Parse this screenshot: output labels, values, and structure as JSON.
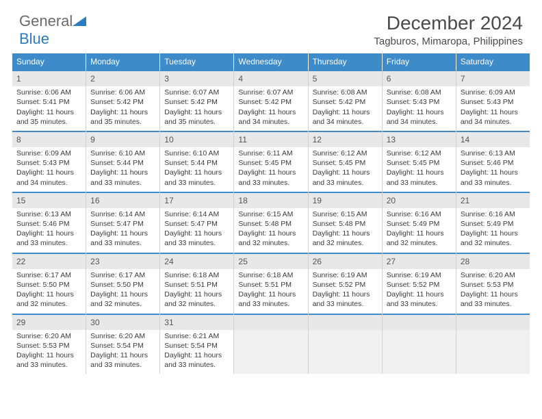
{
  "brand": {
    "word1": "General",
    "word2": "Blue"
  },
  "title": "December 2024",
  "subtitle": "Tagburos, Mimaropa, Philippines",
  "day_headers": [
    "Sunday",
    "Monday",
    "Tuesday",
    "Wednesday",
    "Thursday",
    "Friday",
    "Saturday"
  ],
  "colors": {
    "header_bg": "#3d8bc9",
    "header_text": "#ffffff",
    "daynum_bg": "#e8e8e8",
    "daynum_border": "#3d8bc9",
    "empty_bg": "#f0f0f0",
    "title_color": "#4a4a4a",
    "logo_gray": "#6a6a6a",
    "logo_blue": "#2d7bc0"
  },
  "weeks": [
    [
      {
        "n": "1",
        "sr": "Sunrise: 6:06 AM",
        "ss": "Sunset: 5:41 PM",
        "dl": "Daylight: 11 hours and 35 minutes."
      },
      {
        "n": "2",
        "sr": "Sunrise: 6:06 AM",
        "ss": "Sunset: 5:42 PM",
        "dl": "Daylight: 11 hours and 35 minutes."
      },
      {
        "n": "3",
        "sr": "Sunrise: 6:07 AM",
        "ss": "Sunset: 5:42 PM",
        "dl": "Daylight: 11 hours and 35 minutes."
      },
      {
        "n": "4",
        "sr": "Sunrise: 6:07 AM",
        "ss": "Sunset: 5:42 PM",
        "dl": "Daylight: 11 hours and 34 minutes."
      },
      {
        "n": "5",
        "sr": "Sunrise: 6:08 AM",
        "ss": "Sunset: 5:42 PM",
        "dl": "Daylight: 11 hours and 34 minutes."
      },
      {
        "n": "6",
        "sr": "Sunrise: 6:08 AM",
        "ss": "Sunset: 5:43 PM",
        "dl": "Daylight: 11 hours and 34 minutes."
      },
      {
        "n": "7",
        "sr": "Sunrise: 6:09 AM",
        "ss": "Sunset: 5:43 PM",
        "dl": "Daylight: 11 hours and 34 minutes."
      }
    ],
    [
      {
        "n": "8",
        "sr": "Sunrise: 6:09 AM",
        "ss": "Sunset: 5:43 PM",
        "dl": "Daylight: 11 hours and 34 minutes."
      },
      {
        "n": "9",
        "sr": "Sunrise: 6:10 AM",
        "ss": "Sunset: 5:44 PM",
        "dl": "Daylight: 11 hours and 33 minutes."
      },
      {
        "n": "10",
        "sr": "Sunrise: 6:10 AM",
        "ss": "Sunset: 5:44 PM",
        "dl": "Daylight: 11 hours and 33 minutes."
      },
      {
        "n": "11",
        "sr": "Sunrise: 6:11 AM",
        "ss": "Sunset: 5:45 PM",
        "dl": "Daylight: 11 hours and 33 minutes."
      },
      {
        "n": "12",
        "sr": "Sunrise: 6:12 AM",
        "ss": "Sunset: 5:45 PM",
        "dl": "Daylight: 11 hours and 33 minutes."
      },
      {
        "n": "13",
        "sr": "Sunrise: 6:12 AM",
        "ss": "Sunset: 5:45 PM",
        "dl": "Daylight: 11 hours and 33 minutes."
      },
      {
        "n": "14",
        "sr": "Sunrise: 6:13 AM",
        "ss": "Sunset: 5:46 PM",
        "dl": "Daylight: 11 hours and 33 minutes."
      }
    ],
    [
      {
        "n": "15",
        "sr": "Sunrise: 6:13 AM",
        "ss": "Sunset: 5:46 PM",
        "dl": "Daylight: 11 hours and 33 minutes."
      },
      {
        "n": "16",
        "sr": "Sunrise: 6:14 AM",
        "ss": "Sunset: 5:47 PM",
        "dl": "Daylight: 11 hours and 33 minutes."
      },
      {
        "n": "17",
        "sr": "Sunrise: 6:14 AM",
        "ss": "Sunset: 5:47 PM",
        "dl": "Daylight: 11 hours and 33 minutes."
      },
      {
        "n": "18",
        "sr": "Sunrise: 6:15 AM",
        "ss": "Sunset: 5:48 PM",
        "dl": "Daylight: 11 hours and 32 minutes."
      },
      {
        "n": "19",
        "sr": "Sunrise: 6:15 AM",
        "ss": "Sunset: 5:48 PM",
        "dl": "Daylight: 11 hours and 32 minutes."
      },
      {
        "n": "20",
        "sr": "Sunrise: 6:16 AM",
        "ss": "Sunset: 5:49 PM",
        "dl": "Daylight: 11 hours and 32 minutes."
      },
      {
        "n": "21",
        "sr": "Sunrise: 6:16 AM",
        "ss": "Sunset: 5:49 PM",
        "dl": "Daylight: 11 hours and 32 minutes."
      }
    ],
    [
      {
        "n": "22",
        "sr": "Sunrise: 6:17 AM",
        "ss": "Sunset: 5:50 PM",
        "dl": "Daylight: 11 hours and 32 minutes."
      },
      {
        "n": "23",
        "sr": "Sunrise: 6:17 AM",
        "ss": "Sunset: 5:50 PM",
        "dl": "Daylight: 11 hours and 32 minutes."
      },
      {
        "n": "24",
        "sr": "Sunrise: 6:18 AM",
        "ss": "Sunset: 5:51 PM",
        "dl": "Daylight: 11 hours and 32 minutes."
      },
      {
        "n": "25",
        "sr": "Sunrise: 6:18 AM",
        "ss": "Sunset: 5:51 PM",
        "dl": "Daylight: 11 hours and 33 minutes."
      },
      {
        "n": "26",
        "sr": "Sunrise: 6:19 AM",
        "ss": "Sunset: 5:52 PM",
        "dl": "Daylight: 11 hours and 33 minutes."
      },
      {
        "n": "27",
        "sr": "Sunrise: 6:19 AM",
        "ss": "Sunset: 5:52 PM",
        "dl": "Daylight: 11 hours and 33 minutes."
      },
      {
        "n": "28",
        "sr": "Sunrise: 6:20 AM",
        "ss": "Sunset: 5:53 PM",
        "dl": "Daylight: 11 hours and 33 minutes."
      }
    ],
    [
      {
        "n": "29",
        "sr": "Sunrise: 6:20 AM",
        "ss": "Sunset: 5:53 PM",
        "dl": "Daylight: 11 hours and 33 minutes."
      },
      {
        "n": "30",
        "sr": "Sunrise: 6:20 AM",
        "ss": "Sunset: 5:54 PM",
        "dl": "Daylight: 11 hours and 33 minutes."
      },
      {
        "n": "31",
        "sr": "Sunrise: 6:21 AM",
        "ss": "Sunset: 5:54 PM",
        "dl": "Daylight: 11 hours and 33 minutes."
      },
      null,
      null,
      null,
      null
    ]
  ]
}
